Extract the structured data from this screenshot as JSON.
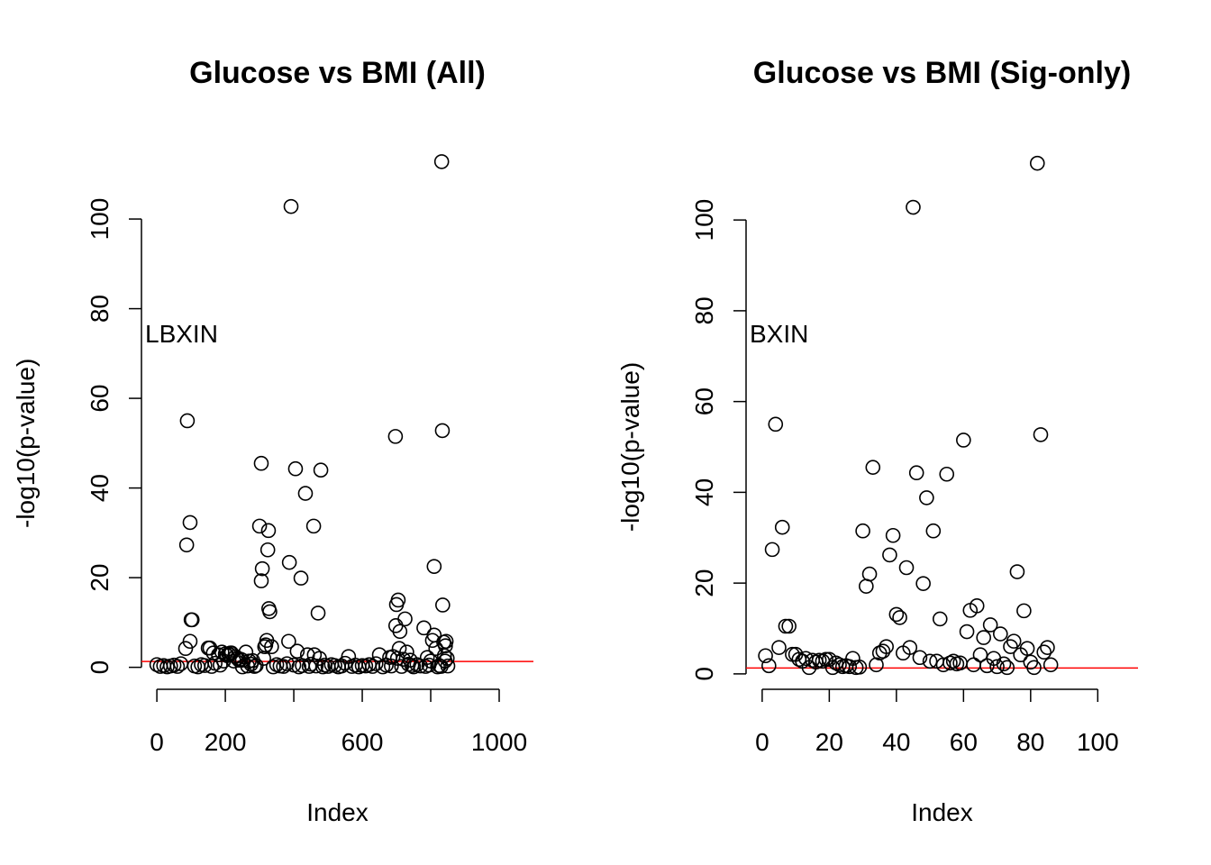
{
  "chart_data": [
    {
      "type": "scatter",
      "title": "Glucose vs BMI (All)",
      "x_label": "Index",
      "y_label": "-log10(p-value)",
      "annotation": "LBXIN",
      "xlim": [
        -45,
        1100
      ],
      "ylim": [
        -4.5,
        117.3
      ],
      "xticks": [
        0,
        200,
        {
          "value": 400,
          "label": null
        },
        600,
        {
          "value": 800,
          "label": null
        },
        1000
      ],
      "yticks": [
        0,
        20,
        40,
        60,
        80,
        100
      ],
      "threshold": 1.3,
      "threshold_color": "#ff0000",
      "color": "#000000",
      "series": [
        {
          "name": "All",
          "x": [
            84,
            87,
            89,
            97,
            97,
            100,
            103,
            150,
            155,
            165,
            180,
            190,
            195,
            200,
            205,
            210,
            212,
            215,
            218,
            225,
            230,
            235,
            240,
            245,
            250,
            260,
            270,
            280,
            300,
            305,
            308,
            305,
            312,
            315,
            318,
            321,
            324,
            326,
            327,
            330,
            335,
            387,
            385,
            392,
            405,
            410,
            421,
            434,
            440,
            458,
            460,
            471,
            475,
            479,
            560,
            650,
            680,
            690,
            697,
            698,
            700,
            703,
            705,
            708,
            710,
            720,
            725,
            730,
            740,
            780,
            790,
            800,
            805,
            810,
            810,
            815,
            835,
            838,
            840,
            842,
            832,
            834,
            843,
            845,
            848,
            0,
            10,
            20,
            30,
            40,
            50,
            60,
            70,
            110,
            120,
            130,
            140,
            160,
            170,
            185,
            250,
            265,
            275,
            285,
            290,
            340,
            350,
            360,
            370,
            380,
            400,
            415,
            425,
            445,
            450,
            465,
            485,
            490,
            500,
            510,
            520,
            530,
            540,
            550,
            570,
            580,
            590,
            600,
            610,
            620,
            630,
            640,
            660,
            670,
            685,
            715,
            735,
            745,
            750,
            760,
            770,
            785,
            795,
            820,
            825,
            830,
            850
          ],
          "y": [
            4.2,
            27.3,
            55.0,
            32.3,
            5.8,
            10.6,
            10.6,
            4.3,
            4.3,
            3.2,
            2.8,
            3.4,
            1.4,
            3.0,
            2.6,
            3.0,
            2.8,
            3.2,
            3.2,
            1.4,
            2.4,
            2.0,
            1.6,
            1.8,
            1.6,
            3.4,
            1.4,
            1.5,
            31.5,
            19.3,
            22.0,
            45.5,
            2.0,
            4.6,
            5.0,
            6.0,
            26.2,
            30.5,
            13.1,
            12.4,
            4.6,
            23.4,
            5.8,
            102.8,
            44.3,
            3.6,
            19.9,
            38.8,
            2.8,
            31.5,
            2.8,
            12.1,
            2.0,
            44.0,
            2.4,
            2.8,
            2.2,
            2.4,
            51.5,
            9.3,
            14.0,
            2.0,
            15.0,
            4.2,
            8.0,
            1.8,
            10.8,
            3.4,
            1.6,
            8.8,
            2.2,
            1.4,
            6.0,
            7.2,
            22.5,
            4.2,
            13.9,
            5.6,
            2.6,
            1.4,
            112.8,
            52.8,
            4.8,
            5.8,
            2.0,
            0.6,
            0.2,
            0.4,
            0.1,
            0.3,
            0.5,
            0.2,
            0.8,
            0.3,
            0.1,
            0.6,
            0.4,
            0.2,
            0.9,
            0.5,
            0.1,
            0.3,
            0.7,
            0.2,
            0.4,
            0.1,
            0.6,
            0.3,
            0.2,
            0.8,
            0.5,
            0.1,
            0.4,
            0.2,
            0.7,
            0.3,
            0.1,
            0.5,
            0.2,
            0.6,
            0.4,
            0.1,
            0.3,
            0.9,
            0.2,
            0.5,
            0.1,
            0.4,
            0.3,
            0.6,
            0.2,
            0.8,
            0.1,
            0.5,
            0.3,
            0.2,
            0.7,
            0.4,
            0.1,
            0.6,
            0.3,
            0.2,
            0.5,
            0.1,
            0.4,
            0.2,
            0.3
          ]
        }
      ]
    },
    {
      "type": "scatter",
      "title": "Glucose vs BMI (Sig-only)",
      "x_label": "Index",
      "y_label": "-log10(p-value)",
      "annotation": "BXIN",
      "xlim": [
        -4.8,
        112
      ],
      "ylim": [
        -3,
        117.3
      ],
      "xticks": [
        0,
        20,
        40,
        60,
        80,
        100
      ],
      "yticks": [
        0,
        20,
        40,
        60,
        80,
        100
      ],
      "threshold": 1.3,
      "threshold_color": "#ff0000",
      "color": "#000000",
      "series": [
        {
          "name": "Sig-only",
          "x": [
            1,
            2,
            3,
            4,
            5,
            6,
            7,
            8,
            9,
            10,
            11,
            12,
            13,
            14,
            15,
            16,
            17,
            18,
            19,
            20,
            21,
            22,
            23,
            24,
            25,
            26,
            27,
            28,
            29,
            30,
            31,
            32,
            33,
            34,
            35,
            36,
            37,
            38,
            39,
            40,
            41,
            42,
            43,
            44,
            45,
            46,
            47,
            48,
            49,
            50,
            51,
            52,
            53,
            54,
            55,
            56,
            57,
            58,
            59,
            60,
            61,
            62,
            63,
            64,
            65,
            66,
            67,
            68,
            69,
            70,
            71,
            72,
            73,
            74,
            75,
            76,
            77,
            78,
            79,
            80,
            81,
            82,
            83,
            84,
            85,
            86
          ],
          "y": [
            4.0,
            1.8,
            27.4,
            55.0,
            5.8,
            32.3,
            10.5,
            10.5,
            4.3,
            4.3,
            3.2,
            2.8,
            3.4,
            1.4,
            3.0,
            2.6,
            3.0,
            2.8,
            3.2,
            3.2,
            1.4,
            2.4,
            2.0,
            1.6,
            1.8,
            1.6,
            3.4,
            1.4,
            1.5,
            31.5,
            19.3,
            22.0,
            45.5,
            2.0,
            4.6,
            5.0,
            6.0,
            26.2,
            30.5,
            13.1,
            12.4,
            4.6,
            23.4,
            5.8,
            102.8,
            44.3,
            3.6,
            19.9,
            38.8,
            2.8,
            31.5,
            2.8,
            12.1,
            2.0,
            44.0,
            2.4,
            2.8,
            2.2,
            2.4,
            51.5,
            9.3,
            14.0,
            2.0,
            15.0,
            4.2,
            8.0,
            1.8,
            10.8,
            3.4,
            1.6,
            8.8,
            2.2,
            1.4,
            6.0,
            7.2,
            22.5,
            4.2,
            13.9,
            5.6,
            2.6,
            1.4,
            112.5,
            52.7,
            4.8,
            5.8,
            2.0
          ]
        }
      ]
    }
  ]
}
